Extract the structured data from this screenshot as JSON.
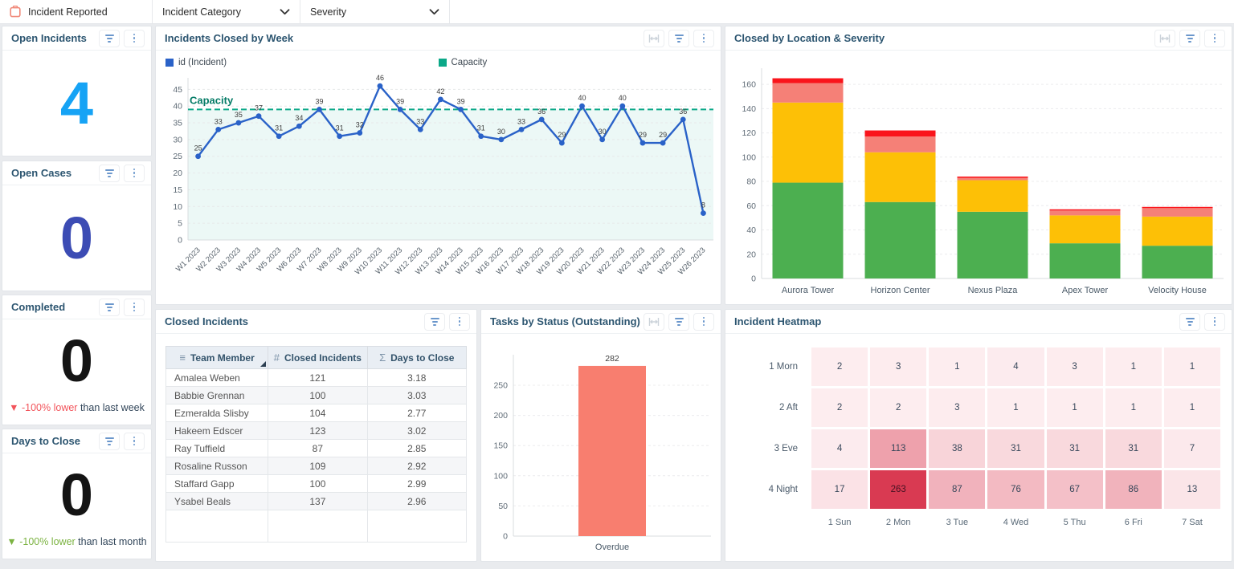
{
  "topbar": {
    "filters": [
      {
        "label": "Incident Reported",
        "icon": "clipboard-icon"
      },
      {
        "label": "Incident Category",
        "icon": "chevron-down-icon"
      },
      {
        "label": "Severity",
        "icon": "chevron-down-icon"
      }
    ]
  },
  "kpis": [
    {
      "title": "Open Incidents",
      "value": "4",
      "value_color": "#16a3f5"
    },
    {
      "title": "Open Cases",
      "value": "0",
      "value_color": "#3c4cb4"
    },
    {
      "title": "Completed",
      "value": "0",
      "value_color": "#141414",
      "delta": {
        "arrow": "▼",
        "highlight": "-100% lower",
        "rest": " than last week",
        "color": "#f2545b"
      }
    },
    {
      "title": "Days to Close",
      "value": "0",
      "value_color": "#141414",
      "delta": {
        "arrow": "▼",
        "highlight": "-100% lower",
        "rest": " than last month",
        "color": "#7cb342"
      }
    }
  ],
  "chart_data": [
    {
      "type": "line",
      "title": "Incidents Closed by Week",
      "legend": [
        {
          "label": "id (Incident)",
          "color": "#2a62c8"
        },
        {
          "label": "Capacity",
          "color": "#0ba888"
        }
      ],
      "x": [
        "W1 2023",
        "W2 2023",
        "W3 2023",
        "W4 2023",
        "W5 2023",
        "W6 2023",
        "W7 2023",
        "W8 2023",
        "W9 2023",
        "W10 2023",
        "W11 2023",
        "W12 2023",
        "W13 2023",
        "W14 2023",
        "W15 2023",
        "W16 2023",
        "W17 2023",
        "W18 2023",
        "W19 2023",
        "W20 2023",
        "W21 2023",
        "W22 2023",
        "W23 2023",
        "W24 2023",
        "W25 2023",
        "W26 2023"
      ],
      "values": [
        25,
        33,
        35,
        37,
        31,
        34,
        39,
        31,
        32,
        46,
        39,
        33,
        42,
        39,
        31,
        30,
        33,
        36,
        29,
        40,
        30,
        40,
        29,
        29,
        36,
        8
      ],
      "capacity": 39,
      "capacity_label": "Capacity",
      "ylim": [
        0,
        45
      ],
      "ytick_step": 5,
      "line_color": "#2a62c8",
      "capacity_color": "#0ba888",
      "capacity_text_color": "#047b66",
      "grid": true
    },
    {
      "type": "bar",
      "stacked": true,
      "title": "Closed by Location & Severity",
      "categories": [
        "Aurora Tower",
        "Horizon Center",
        "Nexus Plaza",
        "Apex Tower",
        "Velocity House"
      ],
      "series": [
        {
          "name": "severity-green",
          "color": "#4caf50",
          "values": [
            79,
            63,
            55,
            29,
            27
          ]
        },
        {
          "name": "severity-amber",
          "color": "#fdc006",
          "values": [
            66,
            41,
            26,
            23,
            24
          ]
        },
        {
          "name": "severity-salmon",
          "color": "#f58077",
          "values": [
            16,
            13,
            2,
            4,
            7
          ]
        },
        {
          "name": "severity-red",
          "color": "#fa141b",
          "values": [
            4,
            5,
            1,
            1,
            1
          ]
        }
      ],
      "ylim": [
        0,
        160
      ],
      "ytick_step": 20,
      "grid": true
    },
    {
      "type": "bar",
      "stacked": false,
      "title": "Tasks by Status (Outstanding)",
      "categories": [
        "Overdue"
      ],
      "values": [
        282
      ],
      "bar_color": "#f87e6f",
      "ylim": [
        0,
        250
      ],
      "ytick_step": 50,
      "grid": true
    },
    {
      "type": "heatmap",
      "title": "Incident Heatmap",
      "rows": [
        "1 Morn",
        "2 Aft",
        "3 Eve",
        "4 Night"
      ],
      "columns": [
        "1 Sun",
        "2 Mon",
        "3 Tue",
        "4 Wed",
        "5 Thu",
        "6 Fri",
        "7 Sat"
      ],
      "values": [
        [
          2,
          3,
          1,
          4,
          3,
          1,
          1
        ],
        [
          2,
          2,
          3,
          1,
          1,
          1,
          1
        ],
        [
          4,
          113,
          38,
          31,
          31,
          31,
          7
        ],
        [
          17,
          263,
          87,
          76,
          67,
          86,
          13
        ]
      ],
      "color_min": "#fdeef0",
      "color_max": "#d93a52"
    },
    {
      "type": "table",
      "title": "Closed Incidents",
      "columns": [
        {
          "glyph": "≡",
          "label": "Team Member",
          "sorted": true
        },
        {
          "glyph": "#",
          "label": "Closed Incidents"
        },
        {
          "glyph": "Σ",
          "label": "Days to Close"
        }
      ],
      "rows": [
        [
          "Amalea Weben",
          "121",
          "3.18"
        ],
        [
          "Babbie Grennan",
          "100",
          "3.03"
        ],
        [
          "Ezmeralda Slisby",
          "104",
          "2.77"
        ],
        [
          "Hakeem Edscer",
          "123",
          "3.02"
        ],
        [
          "Ray Tuffield",
          "87",
          "2.85"
        ],
        [
          "Rosaline Russon",
          "109",
          "2.92"
        ],
        [
          "Staffard Gapp",
          "100",
          "2.99"
        ],
        [
          "Ysabel Beals",
          "137",
          "2.96"
        ]
      ]
    }
  ]
}
